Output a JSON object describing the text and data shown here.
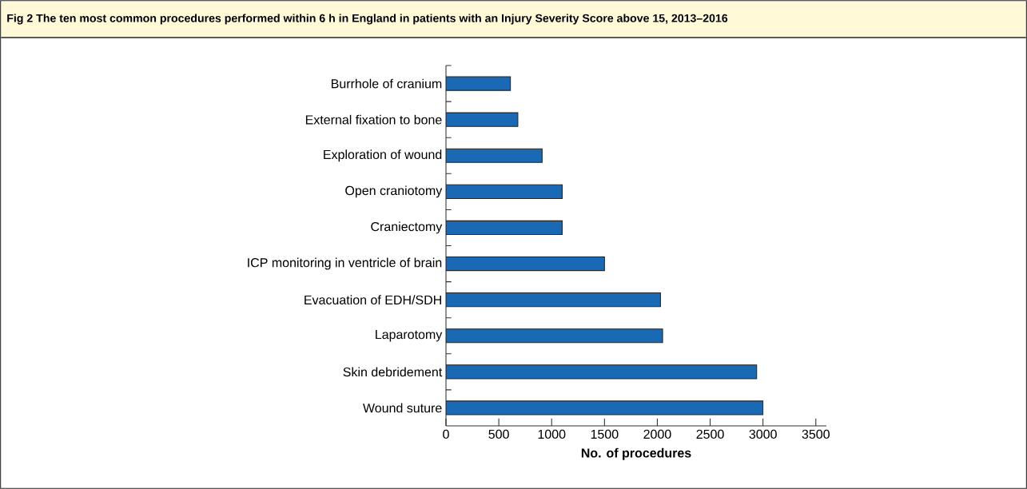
{
  "chart_data": {
    "type": "bar",
    "orientation": "horizontal",
    "title": "Fig 2 The ten most common procedures performed within 6 h in England in patients with an Injury Severity Score above 15, 2013–2016",
    "categories": [
      "Burrhole of cranium",
      "External fixation to bone",
      "Exploration of wound",
      "Open craniotomy",
      "Craniectomy",
      "ICP monitoring in ventricle of brain",
      "Evacuation of EDH/SDH",
      "Laparotomy",
      "Skin debridement",
      "Wound suture"
    ],
    "values": [
      610,
      680,
      910,
      1100,
      1100,
      1500,
      2030,
      2050,
      2940,
      3000
    ],
    "color": "#1a69b4",
    "xlabel": "No. of procedures",
    "xlim": [
      0,
      3600
    ],
    "xticks": [
      0,
      500,
      1000,
      1500,
      2000,
      2500,
      3000,
      3500
    ]
  }
}
